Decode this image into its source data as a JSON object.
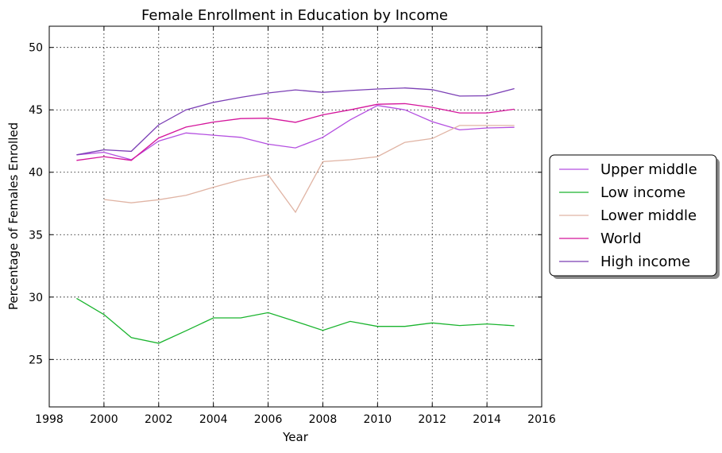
{
  "chart_data": {
    "type": "line",
    "title": "Female Enrollment in Education by Income",
    "xlabel": "Year",
    "ylabel": "Percentage of Females Enrolled",
    "xlim": [
      1998,
      2016
    ],
    "ylim": [
      21.2,
      51.7
    ],
    "xticks": [
      1998,
      2000,
      2002,
      2004,
      2006,
      2008,
      2010,
      2012,
      2014,
      2016
    ],
    "yticks": [
      25,
      30,
      35,
      40,
      45,
      50
    ],
    "grid": true,
    "legend_position": "center-right outside",
    "x": [
      1999,
      2000,
      2001,
      2002,
      2003,
      2004,
      2005,
      2006,
      2007,
      2008,
      2009,
      2010,
      2011,
      2012,
      2013,
      2014,
      2015
    ],
    "series": [
      {
        "name": "Upper middle",
        "color": "#b44fe0",
        "values": [
          41.4,
          41.6,
          41.0,
          42.5,
          43.15,
          42.97,
          42.8,
          42.25,
          41.95,
          42.8,
          44.2,
          45.35,
          45.0,
          44.05,
          43.4,
          43.55,
          43.6
        ]
      },
      {
        "name": "Low income",
        "color": "#1ab42e",
        "values": [
          29.9,
          28.6,
          26.75,
          26.3,
          27.3,
          28.33,
          28.33,
          28.75,
          28.05,
          27.33,
          28.05,
          27.65,
          27.65,
          27.93,
          27.72,
          27.85,
          27.7
        ]
      },
      {
        "name": "Lower middle",
        "color": "#e0b4a4",
        "values": [
          null,
          37.82,
          37.55,
          37.8,
          38.15,
          38.8,
          39.4,
          39.8,
          36.8,
          40.85,
          41.0,
          41.25,
          42.4,
          42.7,
          43.75,
          43.75,
          43.75
        ]
      },
      {
        "name": "World",
        "color": "#d4149b",
        "values": [
          40.95,
          41.25,
          40.95,
          42.75,
          43.62,
          44.02,
          44.3,
          44.33,
          44.0,
          44.6,
          45.0,
          45.45,
          45.5,
          45.2,
          44.75,
          44.75,
          45.05
        ]
      },
      {
        "name": "High income",
        "color": "#7b3fb5",
        "values": [
          41.4,
          41.8,
          41.68,
          43.8,
          45.0,
          45.6,
          46.0,
          46.35,
          46.6,
          46.4,
          46.55,
          46.67,
          46.75,
          46.62,
          46.1,
          46.13,
          46.7
        ]
      }
    ]
  }
}
